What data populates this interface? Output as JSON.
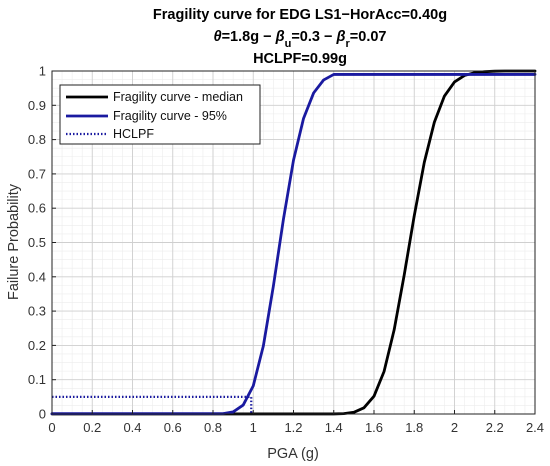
{
  "chart_data": {
    "type": "line",
    "title": "Fragility curve for EDG LS1−HorAcc=0.40g",
    "subtitle": {
      "theta_symbol": "θ",
      "theta_value": "=1.8g − ",
      "beta_symbol": "β",
      "beta_u_sub": "u",
      "beta_u_value": "=0.3 − ",
      "beta_r_sub": "r",
      "beta_r_value": "=0.07"
    },
    "title_line3": "HCLPF=0.99g",
    "xlabel": "PGA (g)",
    "ylabel": "Failure Probability",
    "xlim": [
      0,
      2.4
    ],
    "ylim": [
      0,
      1
    ],
    "xticks": [
      0,
      0.2,
      0.4,
      0.6,
      0.8,
      1,
      1.2,
      1.4,
      1.6,
      1.8,
      2,
      2.2,
      2.4
    ],
    "xtick_labels": [
      "0",
      "0.2",
      "0.4",
      "0.6",
      "0.8",
      "1",
      "1.2",
      "1.4",
      "1.6",
      "1.8",
      "2",
      "2.2",
      "2.4"
    ],
    "yticks": [
      0,
      0.1,
      0.2,
      0.3,
      0.4,
      0.5,
      0.6,
      0.7,
      0.8,
      0.9,
      1
    ],
    "ytick_labels": [
      "0",
      "0.1",
      "0.2",
      "0.3",
      "0.4",
      "0.5",
      "0.6",
      "0.7",
      "0.8",
      "0.9",
      "1"
    ],
    "grid": true,
    "minor_grid": true,
    "legend_position": "top-left",
    "series": [
      {
        "name": "Fragility curve - median",
        "color": "#000000",
        "style": "solid",
        "x": [
          1.4,
          1.45,
          1.5,
          1.55,
          1.6,
          1.65,
          1.7,
          1.75,
          1.8,
          1.85,
          1.9,
          1.95,
          2.0,
          2.05,
          2.1,
          2.15,
          2.2,
          2.25
        ],
        "y": [
          0.0002,
          0.0011,
          0.005,
          0.018,
          0.052,
          0.124,
          0.245,
          0.405,
          0.578,
          0.734,
          0.851,
          0.927,
          0.968,
          0.987,
          0.995,
          0.998,
          0.9995,
          1.0
        ]
      },
      {
        "name": "Fragility curve - 95%",
        "color": "#1a1aa0",
        "style": "solid",
        "x": [
          0.85,
          0.9,
          0.95,
          1.0,
          1.05,
          1.1,
          1.15,
          1.2,
          1.25,
          1.3,
          1.35,
          1.4
        ],
        "y": [
          0.0012,
          0.006,
          0.026,
          0.082,
          0.198,
          0.373,
          0.568,
          0.74,
          0.862,
          0.936,
          0.974,
          0.99
        ]
      },
      {
        "name": "HCLPF",
        "color": "#1a1aa0",
        "style": "dotted",
        "x": [
          0,
          0.99,
          0.99
        ],
        "y": [
          0.05,
          0.05,
          0
        ]
      }
    ]
  }
}
